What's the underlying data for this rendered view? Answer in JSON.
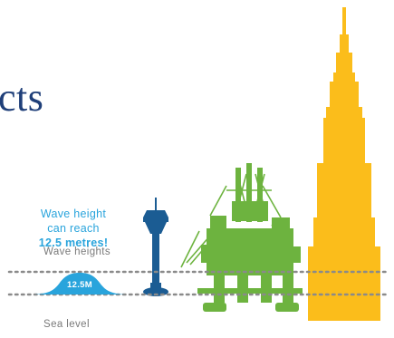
{
  "title_fragment": "cts",
  "callout": {
    "line1": "Wave height",
    "line2": "can reach",
    "value": "12.5 metres",
    "exclaim": "!"
  },
  "labels": {
    "wave_heights": "Wave heights",
    "sea_level": "Sea level",
    "wave_badge": "12.5M"
  },
  "colors": {
    "navy": "#1f3f79",
    "cyan": "#29a4dc",
    "tower_blue": "#1b5c93",
    "rig_green": "#6db33f",
    "building_yellow": "#fbbd1b",
    "dotted_grey": "#8a8a8a",
    "text_grey": "#7a7a7a"
  }
}
